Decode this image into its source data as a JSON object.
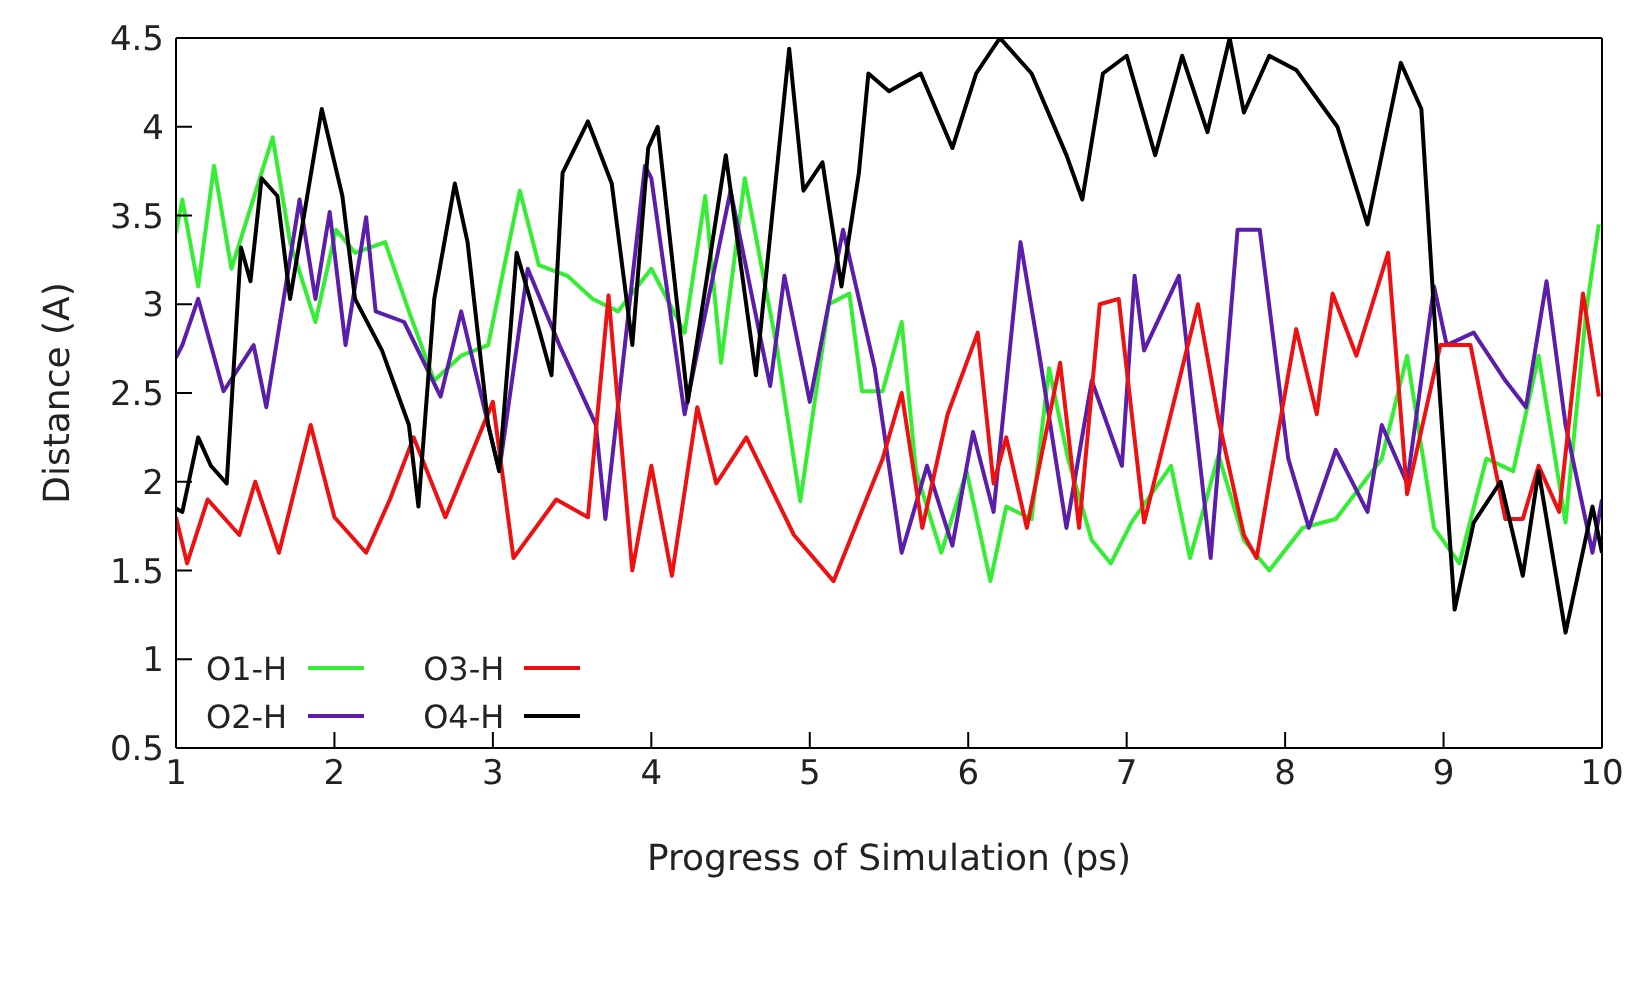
{
  "chart_data": {
    "type": "line",
    "xlabel": "Progress of Simulation (ps)",
    "ylabel": "Distance (A)",
    "xlim": [
      1,
      10
    ],
    "ylim": [
      0.5,
      4.5
    ],
    "xticks": [
      1,
      2,
      3,
      4,
      5,
      6,
      7,
      8,
      9,
      10
    ],
    "yticks": [
      0.5,
      1,
      1.5,
      2,
      2.5,
      3,
      3.5,
      4,
      4.5
    ],
    "legend": "bottom left",
    "marker": "none",
    "line_style": "solid",
    "series": [
      {
        "name": "O1-H",
        "color": "#33ee33",
        "x": [
          1.0,
          1.04,
          1.14,
          1.24,
          1.35,
          1.61,
          1.72,
          1.88,
          2.01,
          2.13,
          2.32,
          2.47,
          2.63,
          2.8,
          2.97,
          3.17,
          3.29,
          3.47,
          3.63,
          3.79,
          4.0,
          4.21,
          4.34,
          4.44,
          4.59,
          4.79,
          4.94,
          5.12,
          5.25,
          5.33,
          5.46,
          5.58,
          5.67,
          5.83,
          5.99,
          6.14,
          6.24,
          6.4,
          6.51,
          6.63,
          6.78,
          6.9,
          7.03,
          7.28,
          7.4,
          7.58,
          7.74,
          7.9,
          8.11,
          8.32,
          8.61,
          8.77,
          8.94,
          9.1,
          9.27,
          9.44,
          9.6,
          9.77,
          9.9,
          9.98
        ],
        "values": [
          3.4,
          3.59,
          3.1,
          3.78,
          3.2,
          3.94,
          3.35,
          2.9,
          3.42,
          3.29,
          3.35,
          2.96,
          2.57,
          2.71,
          2.77,
          3.64,
          3.22,
          3.16,
          3.03,
          2.96,
          3.2,
          2.84,
          3.61,
          2.67,
          3.71,
          2.77,
          1.89,
          3.0,
          3.06,
          2.51,
          2.51,
          2.9,
          2.06,
          1.6,
          2.06,
          1.44,
          1.86,
          1.79,
          2.64,
          2.13,
          1.67,
          1.54,
          1.77,
          2.09,
          1.57,
          2.15,
          1.67,
          1.5,
          1.74,
          1.79,
          2.13,
          2.71,
          1.74,
          1.54,
          2.13,
          2.06,
          2.71,
          1.77,
          2.96,
          3.45
        ]
      },
      {
        "name": "O2-H",
        "color": "#5a1eaa",
        "x": [
          1.0,
          1.04,
          1.14,
          1.3,
          1.49,
          1.57,
          1.78,
          1.88,
          1.97,
          2.07,
          2.2,
          2.26,
          2.44,
          2.67,
          2.8,
          3.04,
          3.22,
          3.42,
          3.65,
          3.71,
          3.96,
          4.0,
          4.21,
          4.5,
          4.75,
          4.84,
          5.0,
          5.21,
          5.41,
          5.58,
          5.74,
          5.9,
          6.03,
          6.16,
          6.33,
          6.45,
          6.62,
          6.78,
          6.97,
          7.05,
          7.11,
          7.33,
          7.53,
          7.7,
          7.84,
          8.02,
          8.15,
          8.32,
          8.52,
          8.61,
          8.77,
          8.94,
          9.02,
          9.19,
          9.39,
          9.52,
          9.65,
          9.77,
          9.94,
          10.0
        ],
        "values": [
          2.7,
          2.77,
          3.03,
          2.51,
          2.77,
          2.42,
          3.59,
          3.03,
          3.52,
          2.77,
          3.49,
          2.96,
          2.9,
          2.48,
          2.96,
          2.06,
          3.2,
          2.77,
          2.32,
          1.79,
          3.78,
          3.71,
          2.38,
          3.64,
          2.54,
          3.16,
          2.45,
          3.42,
          2.64,
          1.6,
          2.09,
          1.64,
          2.28,
          1.83,
          3.35,
          2.71,
          1.74,
          2.57,
          2.09,
          3.16,
          2.74,
          3.16,
          1.57,
          3.42,
          3.42,
          2.13,
          1.74,
          2.18,
          1.83,
          2.32,
          1.99,
          3.1,
          2.77,
          2.84,
          2.57,
          2.42,
          3.13,
          2.32,
          1.6,
          1.9
        ]
      },
      {
        "name": "O3-H",
        "color": "#ee1111",
        "x": [
          1.0,
          1.07,
          1.2,
          1.4,
          1.5,
          1.65,
          1.85,
          2.0,
          2.2,
          2.35,
          2.5,
          2.7,
          3.0,
          3.13,
          3.4,
          3.6,
          3.73,
          3.88,
          4.0,
          4.13,
          4.29,
          4.41,
          4.6,
          4.9,
          5.15,
          5.46,
          5.58,
          5.71,
          5.87,
          6.06,
          6.16,
          6.24,
          6.37,
          6.58,
          6.7,
          6.83,
          6.95,
          7.11,
          7.45,
          7.58,
          7.74,
          7.82,
          7.9,
          8.07,
          8.2,
          8.3,
          8.45,
          8.65,
          8.77,
          8.98,
          9.17,
          9.39,
          9.5,
          9.6,
          9.73,
          9.88,
          9.98
        ],
        "values": [
          1.8,
          1.54,
          1.9,
          1.7,
          2.0,
          1.6,
          2.32,
          1.8,
          1.6,
          1.9,
          2.25,
          1.8,
          2.45,
          1.57,
          1.9,
          1.8,
          3.05,
          1.5,
          2.09,
          1.47,
          2.42,
          1.99,
          2.25,
          1.7,
          1.44,
          2.13,
          2.5,
          1.74,
          2.38,
          2.84,
          1.99,
          2.25,
          1.74,
          2.67,
          1.74,
          3.0,
          3.03,
          1.77,
          3.0,
          2.35,
          1.7,
          1.57,
          1.99,
          2.86,
          2.38,
          3.06,
          2.71,
          3.29,
          1.93,
          2.77,
          2.77,
          1.79,
          1.79,
          2.09,
          1.83,
          3.06,
          2.48
        ]
      },
      {
        "name": "O4-H",
        "color": "#000000",
        "x": [
          1.0,
          1.04,
          1.14,
          1.22,
          1.32,
          1.41,
          1.47,
          1.54,
          1.64,
          1.72,
          1.92,
          2.05,
          2.13,
          2.3,
          2.47,
          2.53,
          2.63,
          2.76,
          2.84,
          2.97,
          3.04,
          3.15,
          3.29,
          3.37,
          3.44,
          3.6,
          3.75,
          3.88,
          3.98,
          4.04,
          4.23,
          4.47,
          4.66,
          4.87,
          4.96,
          5.08,
          5.2,
          5.31,
          5.37,
          5.5,
          5.7,
          5.9,
          6.05,
          6.2,
          6.4,
          6.62,
          6.72,
          6.85,
          7.0,
          7.18,
          7.35,
          7.51,
          7.65,
          7.74,
          7.9,
          8.07,
          8.33,
          8.52,
          8.73,
          8.86,
          8.94,
          9.07,
          9.19,
          9.36,
          9.5,
          9.6,
          9.77,
          9.94,
          10.0
        ],
        "values": [
          1.85,
          1.83,
          2.25,
          2.09,
          1.99,
          3.32,
          3.13,
          3.71,
          3.61,
          3.03,
          4.1,
          3.61,
          3.03,
          2.74,
          2.32,
          1.86,
          3.03,
          3.68,
          3.35,
          2.32,
          2.06,
          3.29,
          2.86,
          2.6,
          3.74,
          4.03,
          3.68,
          2.77,
          3.88,
          4.0,
          2.45,
          3.84,
          2.6,
          4.44,
          3.64,
          3.8,
          3.1,
          3.74,
          4.3,
          4.2,
          4.3,
          3.88,
          4.3,
          4.5,
          4.3,
          3.84,
          3.59,
          4.3,
          4.4,
          3.84,
          4.4,
          3.97,
          4.5,
          4.08,
          4.4,
          4.32,
          4.0,
          3.45,
          4.36,
          4.1,
          2.96,
          1.28,
          1.77,
          2.0,
          1.47,
          2.06,
          1.15,
          1.86,
          1.6
        ]
      }
    ]
  }
}
